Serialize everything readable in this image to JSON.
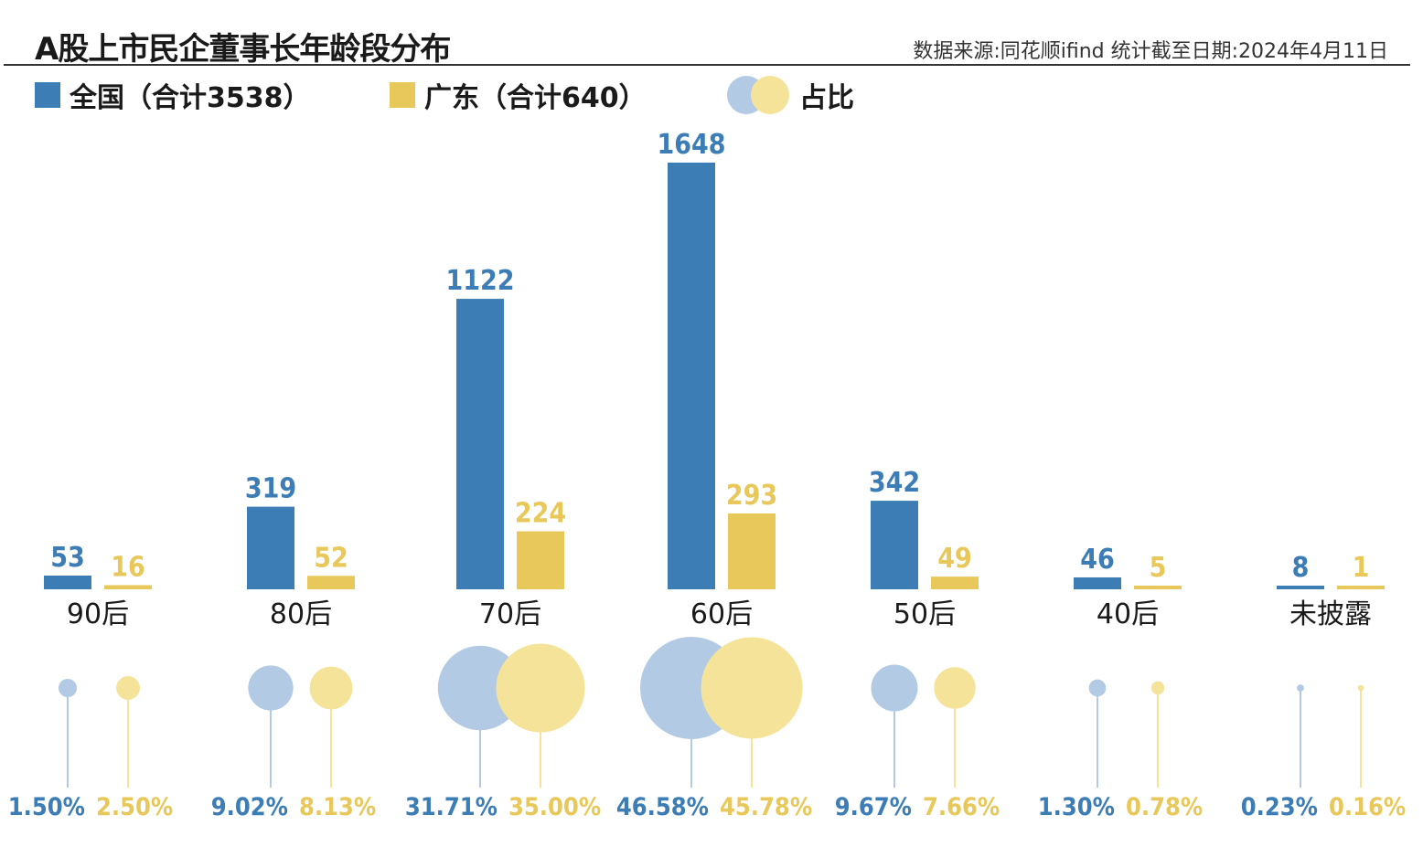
{
  "header": {
    "title": "A股上市民企董事长年龄段分布",
    "source": "数据来源:同花顺ifind  统计截至日期:2024年4月11日"
  },
  "legend": {
    "national": "全国（合计3538）",
    "guangdong": "广东（合计640）",
    "ratio": "占比"
  },
  "colors": {
    "national": "#3d7db5",
    "guangdong": "#e8c85a",
    "national_light": "#b3cae4",
    "guangdong_light": "#f5e39a"
  },
  "chart_data": {
    "type": "bar",
    "categories": [
      "90后",
      "80后",
      "70后",
      "60后",
      "50后",
      "40后",
      "未披露"
    ],
    "series": [
      {
        "name": "全国（合计3538）",
        "values": [
          53,
          319,
          1122,
          1648,
          342,
          46,
          8
        ],
        "value_labels": [
          "53",
          "319",
          "1122",
          "1648",
          "342",
          "46",
          "8"
        ],
        "shares": [
          1.5,
          9.02,
          31.71,
          46.58,
          9.67,
          1.3,
          0.23
        ],
        "share_labels": [
          "1.50%",
          "9.02%",
          "31.71%",
          "46.58%",
          "9.67%",
          "1.30%",
          "0.23%"
        ]
      },
      {
        "name": "广东（合计640）",
        "values": [
          16,
          52,
          224,
          293,
          49,
          5,
          1
        ],
        "value_labels": [
          "16",
          "52",
          "224",
          "293",
          "49",
          "5",
          "1"
        ],
        "shares": [
          2.5,
          8.13,
          35.0,
          45.78,
          7.66,
          0.78,
          0.16
        ],
        "share_labels": [
          "2.50%",
          "8.13%",
          "35.00%",
          "45.78%",
          "7.66%",
          "0.78%",
          "0.16%"
        ]
      }
    ]
  }
}
